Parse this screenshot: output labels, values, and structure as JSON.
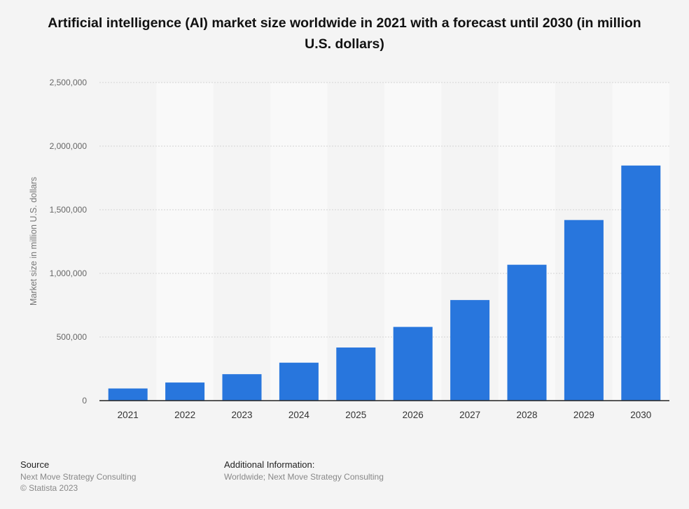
{
  "chart_data": {
    "type": "bar",
    "title": "Artificial intelligence (AI) market size worldwide in 2021 with a forecast until 2030 (in million U.S. dollars)",
    "xlabel": "",
    "ylabel": "Market size in million U.S. dollars",
    "categories": [
      "2021",
      "2022",
      "2023",
      "2024",
      "2025",
      "2026",
      "2027",
      "2028",
      "2029",
      "2030"
    ],
    "values": [
      95600,
      142300,
      207900,
      298250,
      417380,
      579280,
      790470,
      1067840,
      1419290,
      1847490
    ],
    "ylim": [
      0,
      2500000
    ],
    "yticks": [
      0,
      500000,
      1000000,
      1500000,
      2000000,
      2500000
    ],
    "ytick_labels": [
      "0",
      "500,000",
      "1,000,000",
      "1,500,000",
      "2,000,000",
      "2,500,000"
    ],
    "grid": true,
    "bar_color": "#2876dd"
  },
  "footer": {
    "source_heading": "Source",
    "source_text": "Next Move Strategy Consulting",
    "copyright": "© Statista 2023",
    "info_heading": "Additional Information:",
    "info_text": "Worldwide; Next Move Strategy Consulting"
  }
}
